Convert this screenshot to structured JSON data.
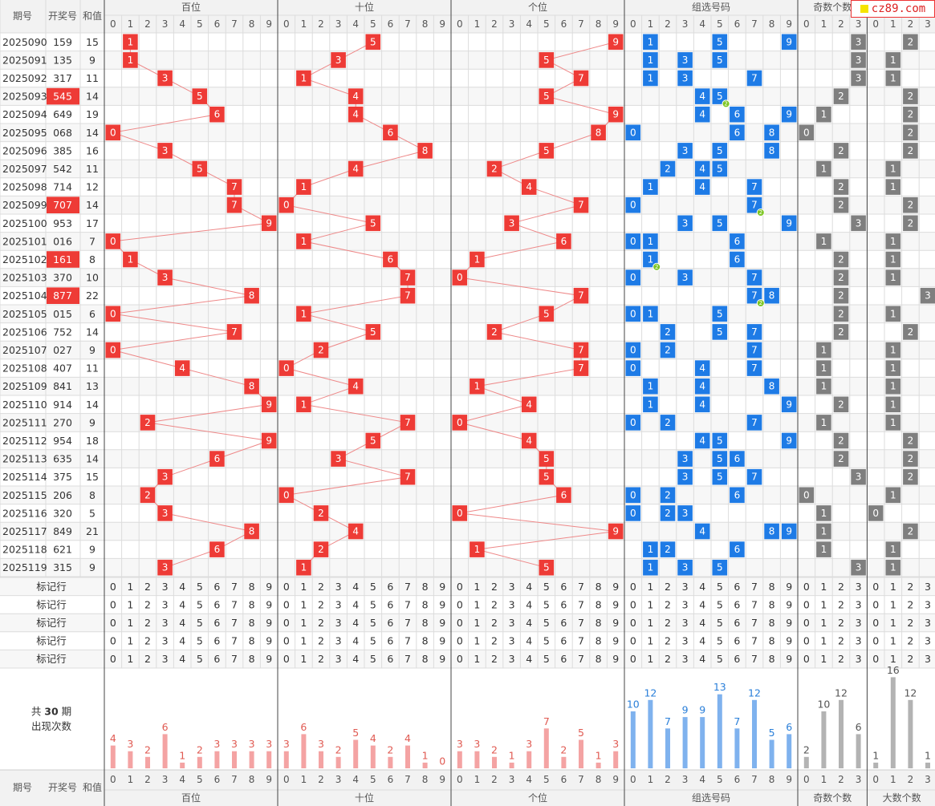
{
  "header": {
    "period_label": "期号",
    "number_label": "开奖号",
    "sum_label": "和值",
    "groups": [
      "百位",
      "十位",
      "个位",
      "组选号码",
      "奇数个数",
      "大数个数"
    ],
    "digits10": [
      "0",
      "1",
      "2",
      "3",
      "4",
      "5",
      "6",
      "7",
      "8",
      "9"
    ],
    "digits4": [
      "0",
      "1",
      "2",
      "3"
    ]
  },
  "logo_text": "cz89.com",
  "mark_row_label": "标记行",
  "stats": {
    "prefix": "共",
    "count": "30",
    "suffix": "期",
    "line2": "出现次数"
  },
  "colors": {
    "red": "#ee3b36",
    "blue": "#1e7be6",
    "gray": "#7f7f7f",
    "green": "#7cc522",
    "highlight": "#ee3b36"
  },
  "chart_data": {
    "type": "table",
    "rows": [
      {
        "period": "2025090",
        "number": "159",
        "sum": "15"
      },
      {
        "period": "2025091",
        "number": "135",
        "sum": "9"
      },
      {
        "period": "2025092",
        "number": "317",
        "sum": "11"
      },
      {
        "period": "2025093",
        "number": "545",
        "sum": "14",
        "highlight": true
      },
      {
        "period": "2025094",
        "number": "649",
        "sum": "19"
      },
      {
        "period": "2025095",
        "number": "068",
        "sum": "14"
      },
      {
        "period": "2025096",
        "number": "385",
        "sum": "16"
      },
      {
        "period": "2025097",
        "number": "542",
        "sum": "11"
      },
      {
        "period": "2025098",
        "number": "714",
        "sum": "12"
      },
      {
        "period": "2025099",
        "number": "707",
        "sum": "14",
        "highlight": true
      },
      {
        "period": "2025100",
        "number": "953",
        "sum": "17"
      },
      {
        "period": "2025101",
        "number": "016",
        "sum": "7"
      },
      {
        "period": "2025102",
        "number": "161",
        "sum": "8",
        "highlight": true
      },
      {
        "period": "2025103",
        "number": "370",
        "sum": "10"
      },
      {
        "period": "2025104",
        "number": "877",
        "sum": "22",
        "highlight": true
      },
      {
        "period": "2025105",
        "number": "015",
        "sum": "6"
      },
      {
        "period": "2025106",
        "number": "752",
        "sum": "14"
      },
      {
        "period": "2025107",
        "number": "027",
        "sum": "9"
      },
      {
        "period": "2025108",
        "number": "407",
        "sum": "11"
      },
      {
        "period": "2025109",
        "number": "841",
        "sum": "13"
      },
      {
        "period": "2025110",
        "number": "914",
        "sum": "14"
      },
      {
        "period": "2025111",
        "number": "270",
        "sum": "9"
      },
      {
        "period": "2025112",
        "number": "954",
        "sum": "18"
      },
      {
        "period": "2025113",
        "number": "635",
        "sum": "14"
      },
      {
        "period": "2025114",
        "number": "375",
        "sum": "15"
      },
      {
        "period": "2025115",
        "number": "206",
        "sum": "8"
      },
      {
        "period": "2025116",
        "number": "320",
        "sum": "5"
      },
      {
        "period": "2025117",
        "number": "849",
        "sum": "21"
      },
      {
        "period": "2025118",
        "number": "621",
        "sum": "9"
      },
      {
        "period": "2025119",
        "number": "315",
        "sum": "9"
      }
    ],
    "mark_rows": 5,
    "counts": {
      "hundreds": [
        4,
        3,
        2,
        6,
        1,
        2,
        3,
        3,
        3,
        3
      ],
      "tens": [
        3,
        6,
        3,
        2,
        5,
        4,
        2,
        4,
        1,
        0
      ],
      "units": [
        3,
        3,
        2,
        1,
        3,
        7,
        2,
        5,
        1,
        3
      ],
      "group": [
        10,
        12,
        7,
        9,
        9,
        13,
        7,
        12,
        5,
        6
      ],
      "odd": [
        2,
        10,
        12,
        6
      ],
      "big": [
        1,
        16,
        12,
        1
      ]
    }
  }
}
